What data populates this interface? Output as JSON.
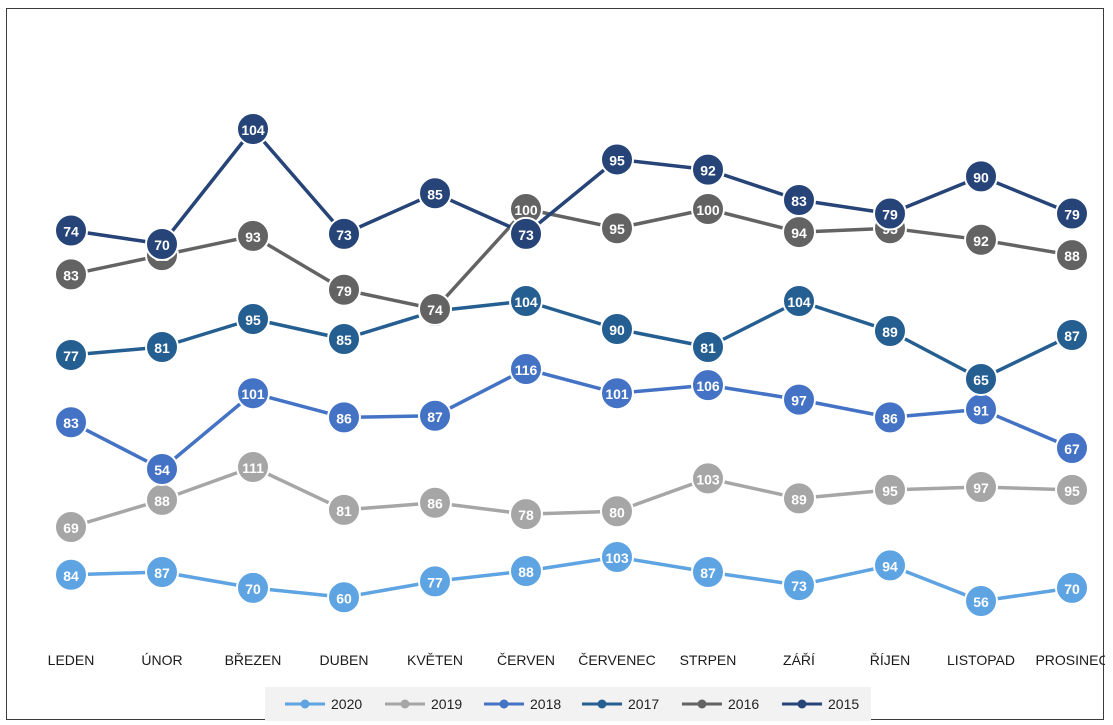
{
  "chart_data": {
    "type": "line",
    "categories": [
      "LEDEN",
      "ÚNOR",
      "BŘEZEN",
      "DUBEN",
      "KVĚTEN",
      "ČERVEN",
      "ČERVENEC",
      "STRPEN",
      "ZÁŘÍ",
      "ŘÍJEN",
      "LISTOPAD",
      "PROSINEC"
    ],
    "series": [
      {
        "name": "2020",
        "color": "#5ea3e2",
        "values": [
          84,
          87,
          70,
          60,
          77,
          88,
          103,
          87,
          73,
          94,
          56,
          70
        ]
      },
      {
        "name": "2019",
        "color": "#a6a6a6",
        "values": [
          69,
          88,
          111,
          81,
          86,
          78,
          80,
          103,
          89,
          95,
          97,
          95
        ]
      },
      {
        "name": "2018",
        "color": "#4472c4",
        "values": [
          83,
          54,
          101,
          86,
          87,
          116,
          101,
          106,
          97,
          86,
          91,
          67
        ]
      },
      {
        "name": "2017",
        "color": "#255e91",
        "values": [
          77,
          81,
          95,
          85,
          99,
          104,
          90,
          81,
          104,
          89,
          65,
          87
        ]
      },
      {
        "name": "2016",
        "color": "#636363",
        "values": [
          83,
          88,
          93,
          79,
          74,
          100,
          95,
          100,
          94,
          95,
          92,
          88
        ]
      },
      {
        "name": "2015",
        "color": "#264478",
        "values": [
          74,
          70,
          104,
          73,
          85,
          73,
          95,
          92,
          83,
          79,
          90,
          79
        ]
      }
    ],
    "layout": "series stacked vertically (offset bands), no y-axis shown",
    "legend": "bottom",
    "grid": false,
    "title": "",
    "xlabel": "",
    "ylabel": ""
  }
}
